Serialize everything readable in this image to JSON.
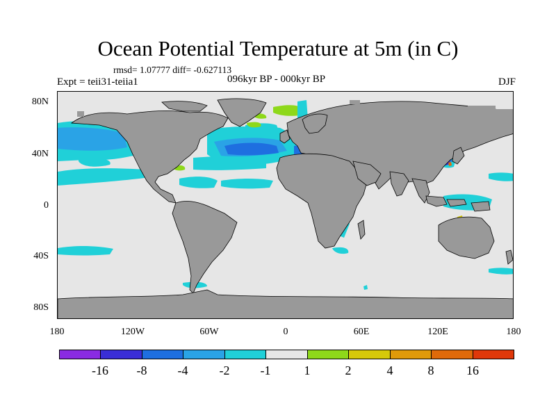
{
  "title": "Ocean Potential Temperature at 5m (in C)",
  "stats": "rmsd= 1.07777 diff= -0.627113",
  "expt": "Expt = teii31-teiia1",
  "period": "096kyr BP - 000kyr BP",
  "season": "DJF",
  "map": {
    "projection": "cylindrical-equidistant",
    "lon_range": [
      -180,
      180
    ],
    "lat_range": [
      -90,
      90
    ],
    "land_color": "#999999",
    "ocean_base_color": "#e6e6e6",
    "lat_labels": [
      "80N",
      "40N",
      "0",
      "40S",
      "80S"
    ],
    "lon_labels": [
      "180",
      "120W",
      "60W",
      "0",
      "60E",
      "120E",
      "180"
    ],
    "anomaly_regions": [
      {
        "name": "North Pacific subtropical",
        "value_range": [
          -2,
          -1
        ]
      },
      {
        "name": "North Atlantic",
        "value_range": [
          -8,
          -4
        ]
      },
      {
        "name": "Nordic Seas",
        "value_range": [
          1,
          4
        ]
      },
      {
        "name": "Southern Ocean",
        "value_range": [
          -2,
          -1
        ]
      },
      {
        "name": "East Asian marginal seas",
        "value_range": [
          -16,
          8
        ]
      }
    ]
  },
  "colorbar": {
    "colors": [
      "#8a2be2",
      "#3a2ed6",
      "#1e6fe0",
      "#2aa3e6",
      "#20d0d8",
      "#e6e6e6",
      "#8ed81a",
      "#d6c90a",
      "#e09a0a",
      "#e06a0a",
      "#e0380a"
    ],
    "labels": [
      "-16",
      "-8",
      "-4",
      "-2",
      "-1",
      "1",
      "2",
      "4",
      "8",
      "16"
    ]
  }
}
